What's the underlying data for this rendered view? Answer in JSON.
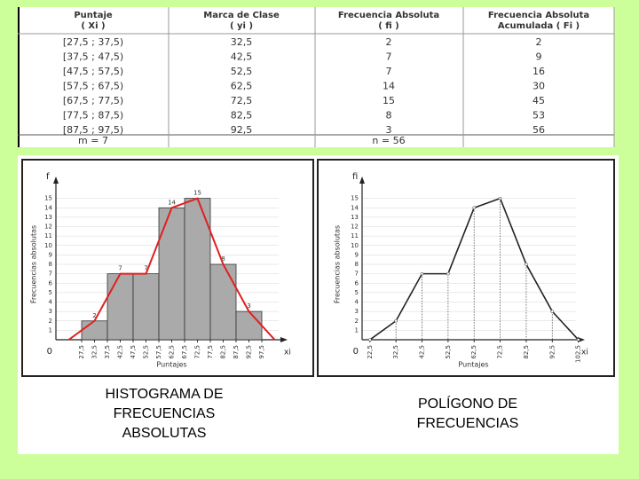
{
  "table": {
    "headers": [
      [
        "Puntaje",
        "( Xi )"
      ],
      [
        "Marca de Clase",
        "( yi )"
      ],
      [
        "Frecuencia Absoluta",
        "( fi )"
      ],
      [
        "Frecuencia Absoluta",
        "Acumulada ( Fi )"
      ]
    ],
    "rows": [
      [
        "[27,5 ; 37,5)",
        "32,5",
        "2",
        "2"
      ],
      [
        "[37,5 ; 47,5)",
        "42,5",
        "7",
        "9"
      ],
      [
        "[47,5 ; 57,5)",
        "52,5",
        "7",
        "16"
      ],
      [
        "[57,5 ; 67,5)",
        "62,5",
        "14",
        "30"
      ],
      [
        "[67,5 ; 77,5)",
        "72,5",
        "15",
        "45"
      ],
      [
        "[77,5 ; 87,5)",
        "82,5",
        "8",
        "53"
      ],
      [
        "[87,5 ; 97,5)",
        "92,5",
        "3",
        "56"
      ]
    ],
    "footer": {
      "m": "m = 7",
      "n": "n = 56"
    }
  },
  "chart_data": [
    {
      "type": "histogram",
      "title": "HISTOGRAMA DE FRECUENCIAS ABSOLUTAS",
      "y_symbol": "f",
      "x_symbol": "xi",
      "origin_label": "0",
      "ylabel": "Frecuencias absolutas",
      "xlabel": "Puntajes",
      "bins": [
        27.5,
        37.5,
        47.5,
        57.5,
        67.5,
        77.5,
        87.5,
        97.5
      ],
      "counts": [
        2,
        7,
        7,
        14,
        15,
        8,
        3
      ],
      "color": "#aaaaaa",
      "polygon": {
        "color": "#e02020",
        "x": [
          22.5,
          32.5,
          42.5,
          52.5,
          62.5,
          72.5,
          82.5,
          92.5,
          102.5
        ],
        "values": [
          0,
          2,
          7,
          7,
          14,
          15,
          8,
          3,
          0
        ]
      },
      "xlim": [
        17.5,
        107.5
      ],
      "ylim": [
        0,
        16
      ],
      "xticks": [
        {
          "value": 27.5,
          "label": "27,5"
        },
        {
          "value": 32.5,
          "label": "32,5"
        },
        {
          "value": 37.5,
          "label": "37,5"
        },
        {
          "value": 42.5,
          "label": "42,5"
        },
        {
          "value": 47.5,
          "label": "47,5"
        },
        {
          "value": 52.5,
          "label": "52,5"
        },
        {
          "value": 57.5,
          "label": "57,5"
        },
        {
          "value": 62.5,
          "label": "62,5"
        },
        {
          "value": 67.5,
          "label": "67,5"
        },
        {
          "value": 72.5,
          "label": "72,5"
        },
        {
          "value": 77.5,
          "label": "77,5"
        },
        {
          "value": 82.5,
          "label": "82,5"
        },
        {
          "value": 87.5,
          "label": "87,5"
        },
        {
          "value": 92.5,
          "label": "92,5"
        },
        {
          "value": 97.5,
          "label": "97,5"
        }
      ],
      "yticks": [
        1,
        2,
        3,
        4,
        5,
        6,
        7,
        8,
        9,
        10,
        11,
        12,
        13,
        14,
        15
      ],
      "grid": true
    },
    {
      "type": "line",
      "title": "POLÍGONO DE FRECUENCIAS",
      "y_symbol": "fi",
      "x_symbol": "xi",
      "origin_label": "0",
      "ylabel": "Frecuencias absolutas",
      "xlabel": "Puntajes",
      "x": [
        22.5,
        32.5,
        42.5,
        52.5,
        62.5,
        72.5,
        82.5,
        92.5,
        102.5
      ],
      "values": [
        0,
        2,
        7,
        7,
        14,
        15,
        8,
        3,
        0
      ],
      "color": "#222222",
      "xlim": [
        19.5,
        105
      ],
      "ylim": [
        0,
        16
      ],
      "xticks": [
        {
          "value": 22.5,
          "label": "22,5"
        },
        {
          "value": 32.5,
          "label": "32,5"
        },
        {
          "value": 42.5,
          "label": "42,5"
        },
        {
          "value": 52.5,
          "label": "52,5"
        },
        {
          "value": 62.5,
          "label": "62,5"
        },
        {
          "value": 72.5,
          "label": "72,5"
        },
        {
          "value": 82.5,
          "label": "82,5"
        },
        {
          "value": 92.5,
          "label": "92,5"
        },
        {
          "value": 102.5,
          "label": "102,5"
        }
      ],
      "yticks": [
        1,
        2,
        3,
        4,
        5,
        6,
        7,
        8,
        9,
        10,
        11,
        12,
        13,
        14,
        15
      ],
      "grid": true
    }
  ]
}
